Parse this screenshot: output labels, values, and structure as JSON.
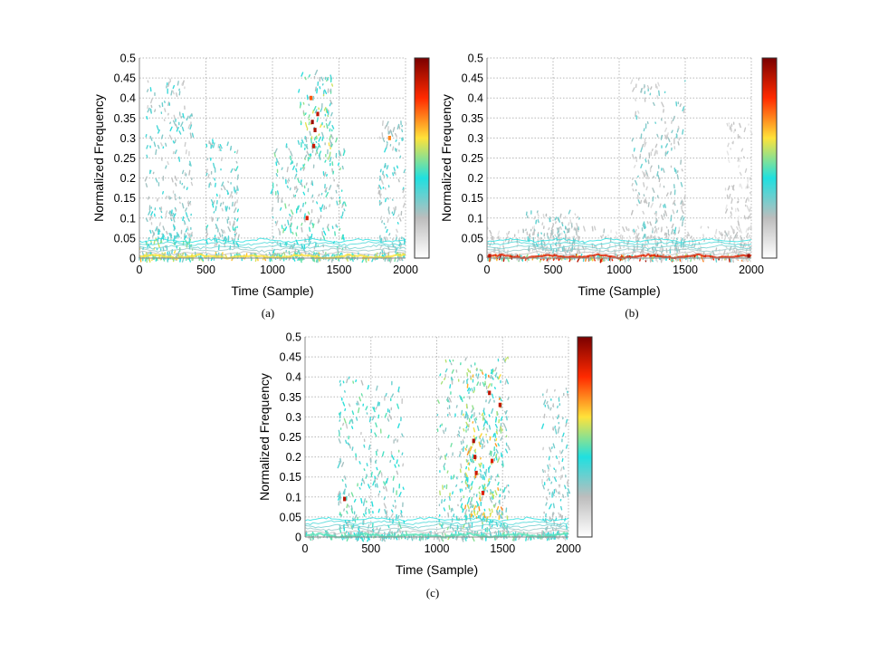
{
  "colormap": [
    "#ffffff",
    "#bdbdbd",
    "#20e0e0",
    "#ffe23a",
    "#ff2a00",
    "#7a0000"
  ],
  "chart_data": [
    {
      "type": "heatmap",
      "panel": "a",
      "caption": "(a)",
      "xlabel": "Time (Sample)",
      "ylabel": "Normalized Frequency",
      "xlim": [
        0,
        2000
      ],
      "ylim": [
        0,
        0.5
      ],
      "xticks": [
        "0",
        "500",
        "1000",
        "1500",
        "2000"
      ],
      "yticks": [
        "0",
        "0.05",
        "0.1",
        "0.15",
        "0.2",
        "0.25",
        "0.3",
        "0.35",
        "0.4",
        "0.45",
        "0.5"
      ],
      "grid": true,
      "colorbar": true,
      "activity_clusters": [
        {
          "t_range": [
            0,
            2000
          ],
          "f_range": [
            0,
            0.015
          ],
          "level": 0.6
        },
        {
          "t_range": [
            0,
            400
          ],
          "f_range": [
            0.0,
            0.05
          ],
          "level": 0.55
        },
        {
          "t_range": [
            50,
            400
          ],
          "f_range": [
            0.05,
            0.45
          ],
          "level": 0.35
        },
        {
          "t_range": [
            500,
            750
          ],
          "f_range": [
            0.03,
            0.3
          ],
          "level": 0.4
        },
        {
          "t_range": [
            1000,
            1550
          ],
          "f_range": [
            0.0,
            0.3
          ],
          "level": 0.45
        },
        {
          "t_range": [
            1200,
            1450
          ],
          "f_range": [
            0.25,
            0.47
          ],
          "level": 0.55
        },
        {
          "t_range": [
            1800,
            2000
          ],
          "f_range": [
            0.0,
            0.35
          ],
          "level": 0.35
        }
      ],
      "peaks": [
        {
          "t": 1300,
          "f": 0.34,
          "level": 0.95
        },
        {
          "t": 1320,
          "f": 0.32,
          "level": 0.92
        },
        {
          "t": 1340,
          "f": 0.36,
          "level": 0.9
        },
        {
          "t": 1310,
          "f": 0.28,
          "level": 0.88
        },
        {
          "t": 1290,
          "f": 0.4,
          "level": 0.75
        },
        {
          "t": 1260,
          "f": 0.1,
          "level": 0.85
        },
        {
          "t": 1880,
          "f": 0.3,
          "level": 0.7
        }
      ]
    },
    {
      "type": "heatmap",
      "panel": "b",
      "caption": "(b)",
      "xlabel": "Time (Sample)",
      "ylabel": "Normalized Frequency",
      "xlim": [
        0,
        2000
      ],
      "ylim": [
        0,
        0.5
      ],
      "xticks": [
        "0",
        "500",
        "1000",
        "1500",
        "2000"
      ],
      "yticks": [
        "0",
        "0.05",
        "0.1",
        "0.15",
        "0.2",
        "0.25",
        "0.3",
        "0.35",
        "0.4",
        "0.45",
        "0.5"
      ],
      "grid": true,
      "colorbar": true,
      "activity_clusters": [
        {
          "t_range": [
            0,
            2000
          ],
          "f_range": [
            0,
            0.01
          ],
          "level": 0.85
        },
        {
          "t_range": [
            0,
            2000
          ],
          "f_range": [
            0.0,
            0.08
          ],
          "level": 0.2
        },
        {
          "t_range": [
            300,
            700
          ],
          "f_range": [
            0.02,
            0.12
          ],
          "level": 0.3
        },
        {
          "t_range": [
            1100,
            1500
          ],
          "f_range": [
            0.02,
            0.45
          ],
          "level": 0.3
        },
        {
          "t_range": [
            1800,
            2000
          ],
          "f_range": [
            0.0,
            0.35
          ],
          "level": 0.18
        }
      ],
      "peaks": [
        {
          "t": 1980,
          "f": 0.005,
          "level": 0.95
        },
        {
          "t": 20,
          "f": 0.005,
          "level": 0.9
        }
      ]
    },
    {
      "type": "heatmap",
      "panel": "c",
      "caption": "(c)",
      "xlabel": "Time (Sample)",
      "ylabel": "Normalized Frequency",
      "xlim": [
        0,
        2000
      ],
      "ylim": [
        0,
        0.5
      ],
      "xticks": [
        "0",
        "500",
        "1000",
        "1500",
        "2000"
      ],
      "yticks": [
        "0",
        "0.05",
        "0.1",
        "0.15",
        "0.2",
        "0.25",
        "0.3",
        "0.35",
        "0.4",
        "0.45",
        "0.5"
      ],
      "grid": true,
      "colorbar": true,
      "activity_clusters": [
        {
          "t_range": [
            0,
            2000
          ],
          "f_range": [
            0,
            0.015
          ],
          "level": 0.45
        },
        {
          "t_range": [
            250,
            750
          ],
          "f_range": [
            0.0,
            0.4
          ],
          "level": 0.45
        },
        {
          "t_range": [
            1000,
            1550
          ],
          "f_range": [
            0.0,
            0.45
          ],
          "level": 0.5
        },
        {
          "t_range": [
            1200,
            1500
          ],
          "f_range": [
            0.05,
            0.43
          ],
          "level": 0.65
        },
        {
          "t_range": [
            1800,
            2000
          ],
          "f_range": [
            0.0,
            0.38
          ],
          "level": 0.35
        }
      ],
      "peaks": [
        {
          "t": 300,
          "f": 0.095,
          "level": 0.9
        },
        {
          "t": 1280,
          "f": 0.24,
          "level": 0.92
        },
        {
          "t": 1290,
          "f": 0.2,
          "level": 0.9
        },
        {
          "t": 1300,
          "f": 0.16,
          "level": 0.88
        },
        {
          "t": 1400,
          "f": 0.36,
          "level": 0.9
        },
        {
          "t": 1420,
          "f": 0.19,
          "level": 0.85
        },
        {
          "t": 1480,
          "f": 0.33,
          "level": 0.9
        },
        {
          "t": 1350,
          "f": 0.11,
          "level": 0.85
        }
      ]
    }
  ]
}
